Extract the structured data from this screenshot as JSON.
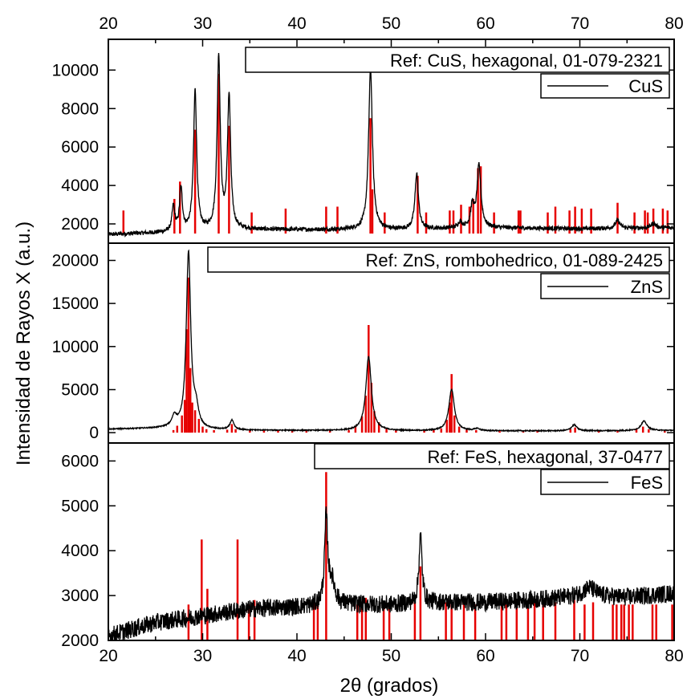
{
  "figure": {
    "xlabel": "2θ  (grados)",
    "ylabel": "Intensidad de Rayos X (a.u.)",
    "x_ticks": [
      "20",
      "30",
      "40",
      "50",
      "60",
      "70",
      "80"
    ]
  },
  "colors": {
    "pattern": "#000000",
    "reference": "#e60000",
    "frame": "#000000"
  },
  "chart_data": [
    {
      "type": "line",
      "panel": "top",
      "title": "Ref: CuS, hexagonal, 01-079-2321",
      "legend": "CuS",
      "legend_position": "top-right",
      "xlim": [
        20,
        80
      ],
      "ylim": [
        1000,
        11600
      ],
      "y_ticks": [
        "2000",
        "4000",
        "6000",
        "8000",
        "10000"
      ],
      "y_tick_values": [
        2000,
        4000,
        6000,
        8000,
        10000
      ],
      "baseline": [
        [
          20,
          1450
        ],
        [
          26,
          1550
        ],
        [
          34,
          1700
        ],
        [
          50,
          1700
        ],
        [
          60,
          1800
        ],
        [
          70,
          1750
        ],
        [
          80,
          1800
        ]
      ],
      "noise": 110,
      "peaks": [
        {
          "x": 26.9,
          "y": 1300,
          "w": 0.18
        },
        {
          "x": 27.7,
          "y": 2200,
          "w": 0.18
        },
        {
          "x": 29.2,
          "y": 7300,
          "w": 0.2
        },
        {
          "x": 31.7,
          "y": 9000,
          "w": 0.2
        },
        {
          "x": 32.8,
          "y": 6900,
          "w": 0.2
        },
        {
          "x": 47.8,
          "y": 8400,
          "w": 0.24
        },
        {
          "x": 52.7,
          "y": 2900,
          "w": 0.22
        },
        {
          "x": 57.3,
          "y": 300,
          "w": 0.25
        },
        {
          "x": 58.6,
          "y": 1100,
          "w": 0.22
        },
        {
          "x": 59.3,
          "y": 3200,
          "w": 0.25
        },
        {
          "x": 74.0,
          "y": 400,
          "w": 0.3
        },
        {
          "x": 77.8,
          "y": 250,
          "w": 0.3
        }
      ],
      "reference": {
        "name": "CuS, hexagonal, 01-079-2321",
        "base": 1500,
        "lines": [
          [
            21.6,
            2700
          ],
          [
            27.0,
            3300
          ],
          [
            27.6,
            4200
          ],
          [
            29.2,
            6900
          ],
          [
            31.7,
            9800
          ],
          [
            32.8,
            7100
          ],
          [
            35.2,
            2600
          ],
          [
            38.8,
            2800
          ],
          [
            43.1,
            2900
          ],
          [
            44.3,
            2900
          ],
          [
            47.8,
            7500
          ],
          [
            48.0,
            3800
          ],
          [
            49.3,
            2600
          ],
          [
            52.8,
            4500
          ],
          [
            53.7,
            2600
          ],
          [
            56.2,
            2700
          ],
          [
            56.6,
            2700
          ],
          [
            57.4,
            3000
          ],
          [
            58.3,
            2900
          ],
          [
            58.7,
            3300
          ],
          [
            59.2,
            4900
          ],
          [
            59.5,
            5000
          ],
          [
            60.9,
            2600
          ],
          [
            63.5,
            2700
          ],
          [
            63.7,
            2700
          ],
          [
            66.6,
            2600
          ],
          [
            67.4,
            2900
          ],
          [
            68.9,
            2700
          ],
          [
            69.5,
            2900
          ],
          [
            70.2,
            2800
          ],
          [
            71.2,
            2800
          ],
          [
            74.0,
            3100
          ],
          [
            75.8,
            2600
          ],
          [
            76.9,
            2700
          ],
          [
            77.2,
            2600
          ],
          [
            77.8,
            2800
          ],
          [
            78.8,
            2800
          ],
          [
            79.3,
            2700
          ]
        ]
      }
    },
    {
      "type": "line",
      "panel": "middle",
      "title": "Ref: ZnS, rombohedrico, 01-089-2425",
      "legend": "ZnS",
      "legend_position": "top-right",
      "xlim": [
        20,
        80
      ],
      "ylim": [
        -1200,
        22000
      ],
      "y_ticks": [
        "0",
        "5000",
        "10000",
        "15000",
        "20000"
      ],
      "y_tick_values": [
        0,
        5000,
        10000,
        15000,
        20000
      ],
      "baseline": [
        [
          20,
          400
        ],
        [
          26,
          500
        ],
        [
          30,
          300
        ],
        [
          40,
          250
        ],
        [
          50,
          200
        ],
        [
          60,
          200
        ],
        [
          70,
          200
        ],
        [
          80,
          250
        ]
      ],
      "noise": 60,
      "peaks": [
        {
          "x": 27.0,
          "y": 1200,
          "w": 0.3
        },
        {
          "x": 28.5,
          "y": 20500,
          "w": 0.28
        },
        {
          "x": 29.3,
          "y": 2000,
          "w": 0.3
        },
        {
          "x": 33.1,
          "y": 1100,
          "w": 0.25
        },
        {
          "x": 47.6,
          "y": 8600,
          "w": 0.35
        },
        {
          "x": 56.4,
          "y": 4800,
          "w": 0.35
        },
        {
          "x": 59.1,
          "y": 250,
          "w": 0.3
        },
        {
          "x": 69.4,
          "y": 700,
          "w": 0.35
        },
        {
          "x": 76.8,
          "y": 1100,
          "w": 0.38
        }
      ],
      "reference": {
        "name": "ZnS, rombohedrico, 01-089-2425",
        "base": 0,
        "lines": [
          [
            26.9,
            300
          ],
          [
            27.3,
            800
          ],
          [
            27.8,
            2000
          ],
          [
            28.1,
            3800
          ],
          [
            28.3,
            12000
          ],
          [
            28.5,
            18000
          ],
          [
            28.7,
            7500
          ],
          [
            28.9,
            3500
          ],
          [
            29.2,
            2600
          ],
          [
            29.6,
            1600
          ],
          [
            30.0,
            700
          ],
          [
            30.4,
            400
          ],
          [
            31.2,
            300
          ],
          [
            32.6,
            350
          ],
          [
            33.1,
            1000
          ],
          [
            33.5,
            400
          ],
          [
            35.0,
            300
          ],
          [
            36.5,
            300
          ],
          [
            38.0,
            250
          ],
          [
            39.5,
            300
          ],
          [
            41.0,
            250
          ],
          [
            43.5,
            300
          ],
          [
            45.5,
            300
          ],
          [
            46.2,
            800
          ],
          [
            46.9,
            1900
          ],
          [
            47.3,
            4300
          ],
          [
            47.6,
            12500
          ],
          [
            47.9,
            5800
          ],
          [
            48.2,
            2500
          ],
          [
            48.7,
            1200
          ],
          [
            49.5,
            500
          ],
          [
            50.5,
            300
          ],
          [
            53.5,
            300
          ],
          [
            54.5,
            300
          ],
          [
            55.3,
            500
          ],
          [
            55.9,
            1500
          ],
          [
            56.2,
            3500
          ],
          [
            56.4,
            6800
          ],
          [
            56.7,
            2000
          ],
          [
            57.2,
            700
          ],
          [
            58.0,
            400
          ],
          [
            59.0,
            300
          ],
          [
            61.5,
            300
          ],
          [
            64.0,
            250
          ],
          [
            65.5,
            300
          ],
          [
            69.0,
            400
          ],
          [
            69.5,
            600
          ],
          [
            72.0,
            300
          ],
          [
            74.0,
            300
          ],
          [
            76.0,
            500
          ],
          [
            76.7,
            700
          ],
          [
            77.3,
            400
          ],
          [
            79.0,
            300
          ]
        ]
      }
    },
    {
      "type": "line",
      "panel": "bottom",
      "title": "Ref: FeS, hexagonal, 37-0477",
      "legend": "FeS",
      "legend_position": "top-right",
      "xlim": [
        20,
        80
      ],
      "ylim": [
        2000,
        6400
      ],
      "y_ticks": [
        "2000",
        "3000",
        "4000",
        "5000",
        "6000"
      ],
      "y_tick_values": [
        2000,
        3000,
        4000,
        5000,
        6000
      ],
      "baseline": [
        [
          20,
          2100
        ],
        [
          25,
          2400
        ],
        [
          30,
          2550
        ],
        [
          35,
          2700
        ],
        [
          40,
          2750
        ],
        [
          45,
          2800
        ],
        [
          50,
          2800
        ],
        [
          55,
          2850
        ],
        [
          60,
          2850
        ],
        [
          65,
          2900
        ],
        [
          70,
          2980
        ],
        [
          75,
          2960
        ],
        [
          80,
          3050
        ]
      ],
      "noise": 200,
      "peaks": [
        {
          "x": 43.1,
          "y": 1900,
          "w": 0.2
        },
        {
          "x": 43.7,
          "y": 500,
          "w": 0.4
        },
        {
          "x": 53.1,
          "y": 1500,
          "w": 0.2
        },
        {
          "x": 71.0,
          "y": 200,
          "w": 0.8
        }
      ],
      "reference": {
        "name": "FeS, hexagonal, 37-0477",
        "base": 2000,
        "lines": [
          [
            28.5,
            2800
          ],
          [
            29.9,
            4250
          ],
          [
            30.5,
            3150
          ],
          [
            33.7,
            4250
          ],
          [
            34.9,
            2800
          ],
          [
            35.5,
            2900
          ],
          [
            41.8,
            2900
          ],
          [
            42.2,
            2850
          ],
          [
            43.1,
            5750
          ],
          [
            46.4,
            2800
          ],
          [
            46.9,
            2850
          ],
          [
            47.3,
            2950
          ],
          [
            49.2,
            2800
          ],
          [
            49.8,
            2800
          ],
          [
            52.5,
            2850
          ],
          [
            53.1,
            3650
          ],
          [
            55.8,
            2850
          ],
          [
            56.4,
            2900
          ],
          [
            57.7,
            2850
          ],
          [
            58.9,
            2800
          ],
          [
            61.7,
            2800
          ],
          [
            62.2,
            2800
          ],
          [
            63.3,
            2850
          ],
          [
            64.5,
            2800
          ],
          [
            65.2,
            2850
          ],
          [
            66.1,
            2800
          ],
          [
            67.4,
            2850
          ],
          [
            69.4,
            2900
          ],
          [
            70.5,
            2800
          ],
          [
            71.4,
            2850
          ],
          [
            73.5,
            2800
          ],
          [
            73.9,
            2800
          ],
          [
            74.4,
            2800
          ],
          [
            74.7,
            2800
          ],
          [
            75.2,
            2800
          ],
          [
            75.6,
            2800
          ],
          [
            77.7,
            2800
          ],
          [
            78.1,
            2800
          ],
          [
            79.8,
            2800
          ]
        ]
      }
    }
  ]
}
